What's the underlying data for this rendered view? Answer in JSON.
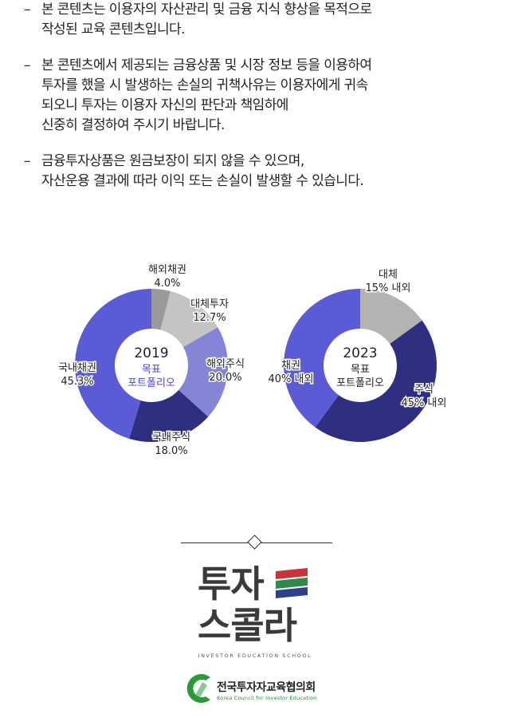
{
  "disclaimers": [
    "본 콘텐츠는 이용자의 자산관리 및 금융 지식 향상을  목적으로\n작성된 교육 콘텐츠입니다.",
    "본 콘텐츠에서 제공되는 금융상품 및 시장 정보 등을 이용하여\n투자를 했을 시  발생하는 손실의 귀책사유는 이용자에게 귀속\n되오니 투자는 이용자 자신의 판단과 책임하에\n신중히 결정하여 주시기 바랍니다.",
    "금융투자상품은 원금보장이 되지 않을 수 있으며,\n자산운용 결과에 따라 이익 또는 손실이 발생할 수 있습니다."
  ],
  "dash": "–",
  "chart_data": [
    {
      "type": "pie",
      "center_year": "2019",
      "center_label_1": "목표",
      "center_label_2": "포트폴리오",
      "slices": [
        {
          "name": "해외채권",
          "label": "4.0%",
          "value": 4.0,
          "color": "#9a9a9a"
        },
        {
          "name": "대체투자",
          "label": "12.7%",
          "value": 12.7,
          "color": "#c4c4c4"
        },
        {
          "name": "해외주식",
          "label": "20.0%",
          "value": 20.0,
          "color": "#8585d8"
        },
        {
          "name": "국내주식",
          "label": "18.0%",
          "value": 18.0,
          "color": "#2f2f82"
        },
        {
          "name": "국내채권",
          "label": "45.3%",
          "value": 45.3,
          "color": "#5b5bd6"
        }
      ]
    },
    {
      "type": "pie",
      "center_year": "2023",
      "center_label_1": "목표",
      "center_label_2": "포트폴리오",
      "slices": [
        {
          "name": "대체",
          "label": "15% 내외",
          "value": 15,
          "color": "#b3b3b3"
        },
        {
          "name": "주식",
          "label": "45% 내외",
          "value": 45,
          "color": "#2f2f82"
        },
        {
          "name": "채권",
          "label": "40% 내외",
          "value": 40,
          "color": "#5b5bd6"
        }
      ]
    }
  ],
  "logo": {
    "line1": "투자",
    "line2": "스콜라",
    "subtitle": "INVESTOR EDUCATION SCHOOL",
    "stripe_colors": [
      "#c8343a",
      "#2f8a4a",
      "#2f3f8a"
    ]
  },
  "council": {
    "name": "전국투자자교육협의회",
    "english": "Korea Council for Investor Education",
    "mark_color": "#2a9a3a"
  }
}
